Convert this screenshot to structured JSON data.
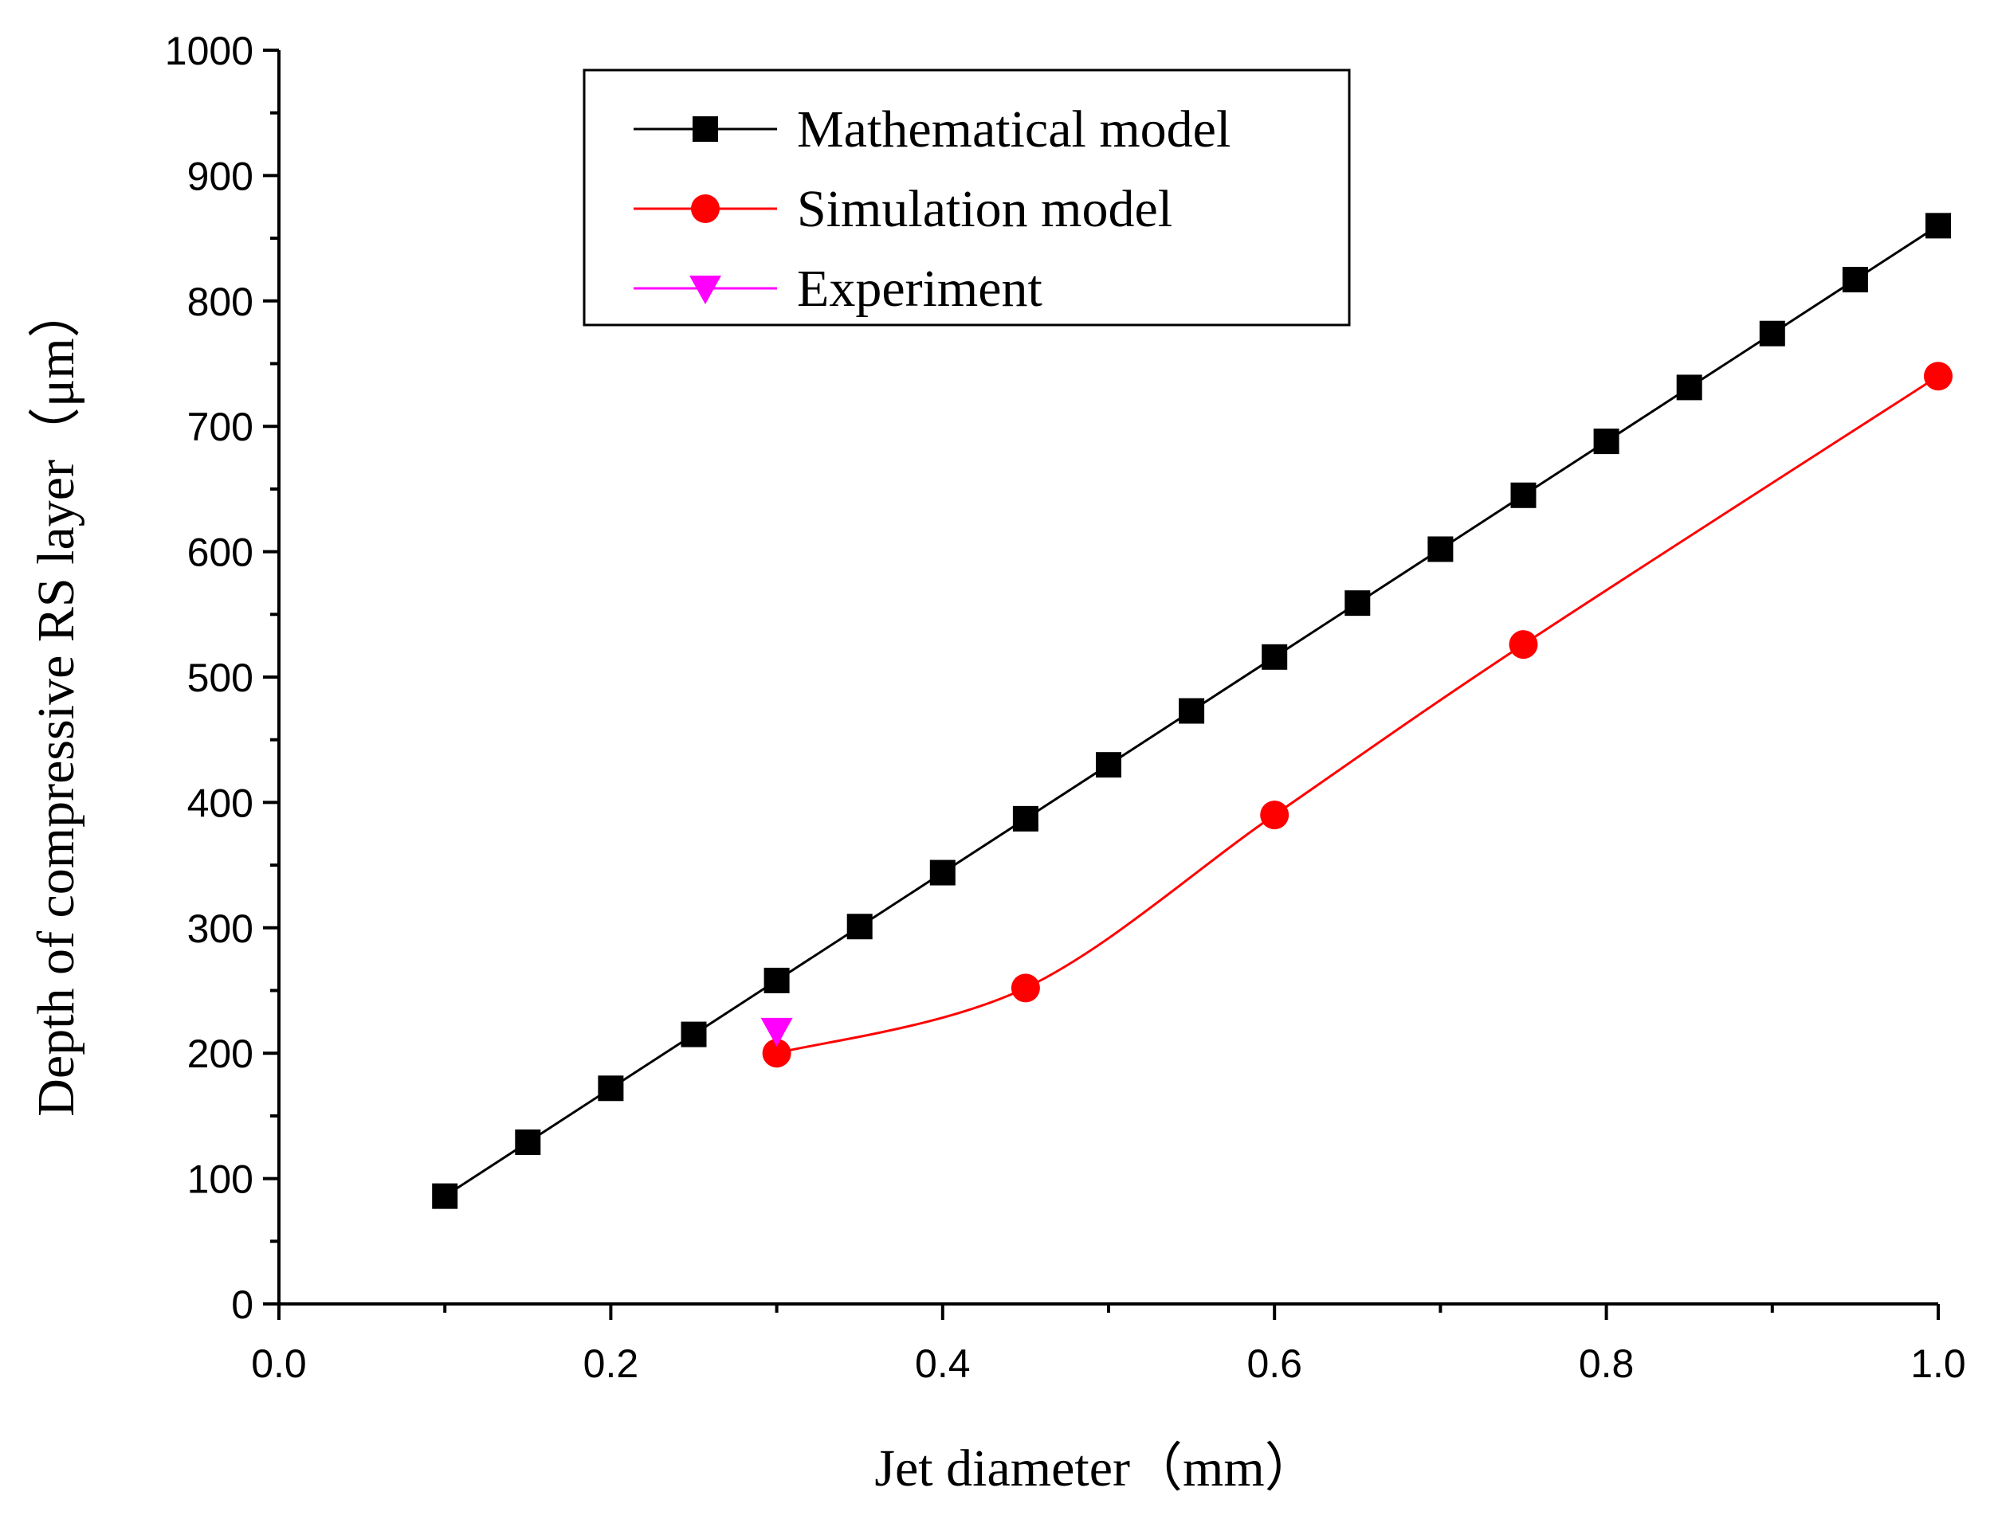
{
  "chart_data": {
    "type": "line",
    "title": "",
    "xlabel": "Jet diameter（mm）",
    "ylabel": "Depth of compressive RS layer（μm）",
    "xlim": [
      0.0,
      1.0
    ],
    "ylim": [
      0,
      1000
    ],
    "x_ticks": [
      "0.0",
      "0.2",
      "0.4",
      "0.6",
      "0.8",
      "1.0"
    ],
    "y_ticks": [
      "0",
      "100",
      "200",
      "300",
      "400",
      "500",
      "600",
      "700",
      "800",
      "900",
      "1000"
    ],
    "grid": false,
    "legend_position": "top-center",
    "series": [
      {
        "name": "Mathematical model",
        "color": "#000000",
        "marker": "square",
        "smooth": false,
        "x": [
          0.1,
          0.15,
          0.2,
          0.25,
          0.3,
          0.35,
          0.4,
          0.45,
          0.5,
          0.55,
          0.6,
          0.65,
          0.7,
          0.75,
          0.8,
          0.85,
          0.9,
          0.95,
          1.0
        ],
        "y": [
          86,
          129,
          172,
          215,
          258,
          301,
          344,
          387,
          430,
          473,
          516,
          559,
          602,
          645,
          688,
          731,
          774,
          817,
          860
        ]
      },
      {
        "name": "Simulation model",
        "color": "#ff0000",
        "marker": "circle",
        "smooth": true,
        "x": [
          0.3,
          0.45,
          0.6,
          0.75,
          1.0
        ],
        "y": [
          200,
          252,
          390,
          526,
          740
        ]
      },
      {
        "name": "Experiment",
        "color": "#ff00ff",
        "marker": "triangle-down",
        "smooth": false,
        "x": [
          0.3
        ],
        "y": [
          218
        ]
      }
    ]
  }
}
